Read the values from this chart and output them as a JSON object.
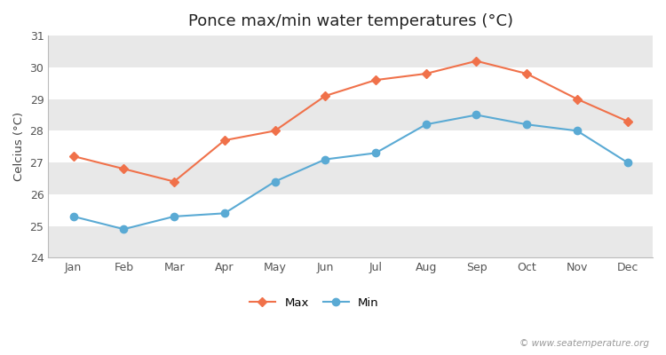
{
  "title": "Ponce max/min water temperatures (°C)",
  "ylabel": "Celcius (°C)",
  "months": [
    "Jan",
    "Feb",
    "Mar",
    "Apr",
    "May",
    "Jun",
    "Jul",
    "Aug",
    "Sep",
    "Oct",
    "Nov",
    "Dec"
  ],
  "max_temps": [
    27.2,
    26.8,
    26.4,
    27.7,
    28.0,
    29.1,
    29.6,
    29.8,
    30.2,
    29.8,
    29.0,
    28.3
  ],
  "min_temps": [
    25.3,
    24.9,
    25.3,
    25.4,
    26.4,
    27.1,
    27.3,
    28.2,
    28.5,
    28.2,
    28.0,
    27.0
  ],
  "max_color": "#f0714a",
  "min_color": "#5aaad4",
  "fig_bg_color": "#ffffff",
  "plot_bg_color": "#ffffff",
  "band_color": "#e8e8e8",
  "ylim": [
    24,
    31
  ],
  "yticks": [
    24,
    25,
    26,
    27,
    28,
    29,
    30,
    31
  ],
  "watermark": "© www.seatemperature.org",
  "legend_max": "Max",
  "legend_min": "Min",
  "title_fontsize": 13,
  "label_fontsize": 9.5,
  "tick_fontsize": 9,
  "watermark_fontsize": 7.5
}
